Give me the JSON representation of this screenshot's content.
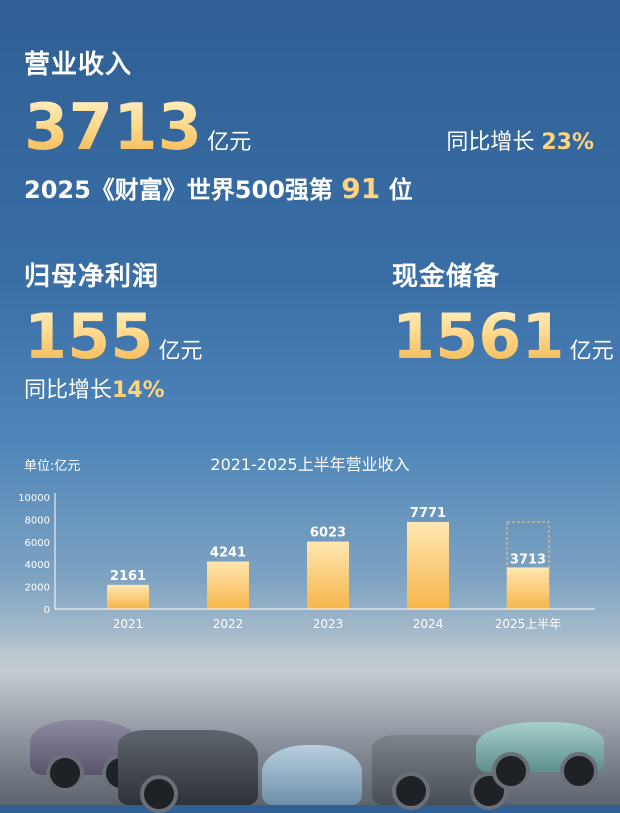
{
  "revenue": {
    "label": "营业收入",
    "value": "3713",
    "unit": "亿元",
    "growth_label": "同比增长",
    "growth_value": "23%"
  },
  "fortune": {
    "prefix": "2025《财富》世界500强第",
    "rank": "91",
    "suffix": "位"
  },
  "net_profit": {
    "label": "归母净利润",
    "value": "155",
    "unit": "亿元",
    "growth_label": "同比增长",
    "growth_value": "14%"
  },
  "cash": {
    "label": "现金储备",
    "value": "1561",
    "unit": "亿元"
  },
  "colors": {
    "accent_gold": "#ffd47a",
    "bar_top": "#ffe7b2",
    "bar_bottom": "#f6b54a"
  },
  "chart_data": {
    "type": "bar",
    "title": "2021-2025上半年营业收入",
    "unit_label": "单位:亿元",
    "categories": [
      "2021",
      "2022",
      "2023",
      "2024",
      "2025上半年"
    ],
    "values": [
      2161,
      4241,
      6023,
      7771,
      3713
    ],
    "ylim": [
      0,
      10000
    ],
    "yticks": [
      0,
      2000,
      4000,
      6000,
      8000,
      10000
    ],
    "grid": false,
    "note": "2025上半年 bar has dashed outline extension to the height of the 2024 value"
  }
}
